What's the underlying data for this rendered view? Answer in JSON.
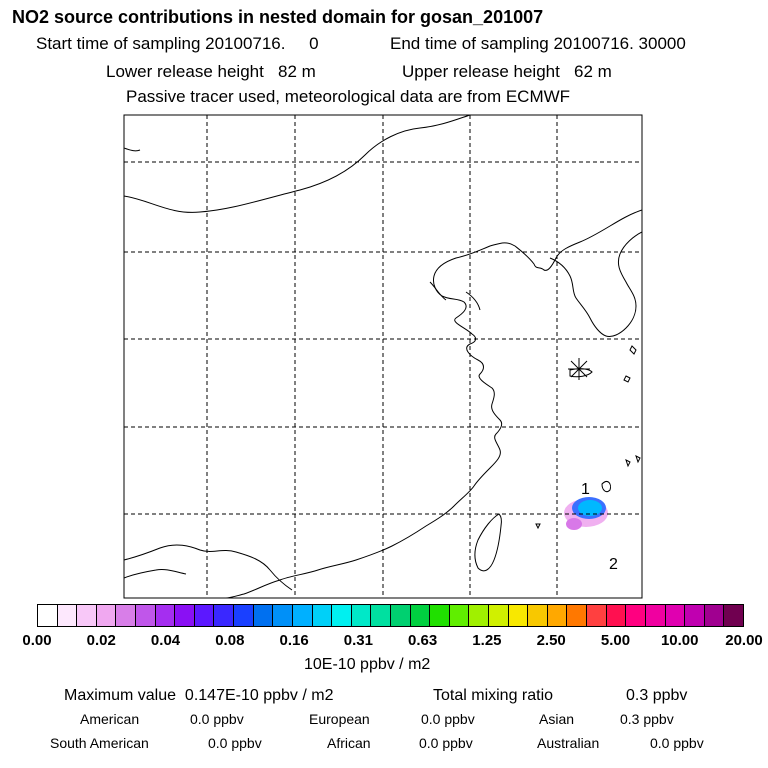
{
  "header": {
    "title": "NO2 source contributions in nested domain for gosan_201007",
    "start_time": "Start time of sampling 20100716.     0",
    "end_time": "End time of sampling 20100716. 30000",
    "lower_height": "Lower release height   82 m",
    "upper_height": "Upper release height   62 m",
    "note": "Passive tracer used, meteorological data are from ECMWF"
  },
  "map": {
    "markers": [
      "1",
      "2"
    ]
  },
  "colorbar": {
    "colors": [
      "#ffffff",
      "#fde8fd",
      "#f8c8f8",
      "#f0a8f0",
      "#d87ee8",
      "#c056ea",
      "#a52ef0",
      "#8a10f4",
      "#5c18ff",
      "#3a28ff",
      "#1a40ff",
      "#0070f0",
      "#0090f8",
      "#00b0ff",
      "#00d0f8",
      "#00f0f0",
      "#00e8c8",
      "#00e0a0",
      "#00d070",
      "#00d040",
      "#20e000",
      "#60ee00",
      "#a0f000",
      "#d0f000",
      "#f8e800",
      "#f8c800",
      "#ffa800",
      "#ff7800",
      "#ff4040",
      "#ff1050",
      "#ff0080",
      "#f000a0",
      "#e000b0",
      "#c000b0",
      "#a00090",
      "#700050"
    ],
    "tick_labels": [
      "0.00",
      "0.02",
      "0.04",
      "0.08",
      "0.16",
      "0.31",
      "0.63",
      "1.25",
      "2.50",
      "5.00",
      "10.00",
      "20.00"
    ],
    "unit": "10E-10 ppbv / m2"
  },
  "stats": {
    "maximum": "Maximum value  0.147E-10 ppbv / m2",
    "total_label": "Total mixing ratio",
    "total_value": "0.3 ppbv",
    "regions": [
      {
        "name": "American",
        "value": "0.0 ppbv"
      },
      {
        "name": "European",
        "value": "0.0 ppbv"
      },
      {
        "name": "Asian",
        "value": "0.3 ppbv"
      },
      {
        "name": "South American",
        "value": "0.0 ppbv"
      },
      {
        "name": "African",
        "value": "0.0 ppbv"
      },
      {
        "name": "Australian",
        "value": "0.0 ppbv"
      }
    ]
  }
}
